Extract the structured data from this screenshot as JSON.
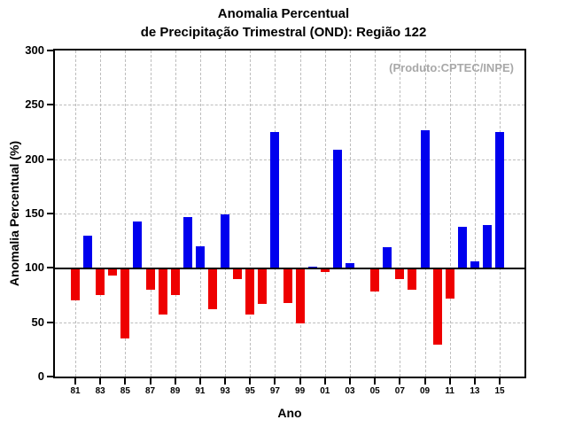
{
  "chart_data": {
    "type": "bar",
    "title_line1": "Anomalia Percentual",
    "title_line2": "de Precipitação Trimestral (OND): Região 122",
    "annotation": "(Produto:CPTEC/INPE)",
    "xlabel": "Ano",
    "ylabel": "Anomalia Percentual (%)",
    "ylim": [
      0,
      300
    ],
    "ytick_interval": 50,
    "y_tick_labels": [
      "0",
      "50",
      "100",
      "150",
      "200",
      "250",
      "300"
    ],
    "baseline": 100,
    "x_tick_labels": [
      "81",
      "83",
      "85",
      "87",
      "89",
      "91",
      "93",
      "95",
      "97",
      "99",
      "01",
      "03",
      "05",
      "07",
      "09",
      "11",
      "13",
      "15"
    ],
    "x_tick_every": 2,
    "years": [
      "81",
      "82",
      "83",
      "84",
      "85",
      "86",
      "87",
      "88",
      "89",
      "90",
      "91",
      "92",
      "93",
      "94",
      "95",
      "96",
      "97",
      "98",
      "99",
      "00",
      "01",
      "02",
      "03",
      "04",
      "05",
      "06",
      "07",
      "08",
      "09",
      "10",
      "11",
      "12",
      "13",
      "14",
      "15"
    ],
    "values": [
      70,
      130,
      75,
      93,
      35,
      143,
      80,
      57,
      75,
      147,
      120,
      62,
      149,
      90,
      57,
      67,
      225,
      68,
      49,
      101,
      96,
      209,
      104,
      100,
      78,
      119,
      90,
      80,
      227,
      29,
      72,
      138,
      106,
      139,
      225
    ],
    "colors": {
      "above_baseline": "#0000ee",
      "below_baseline": "#ee0000"
    },
    "grid": true,
    "legend": null
  }
}
